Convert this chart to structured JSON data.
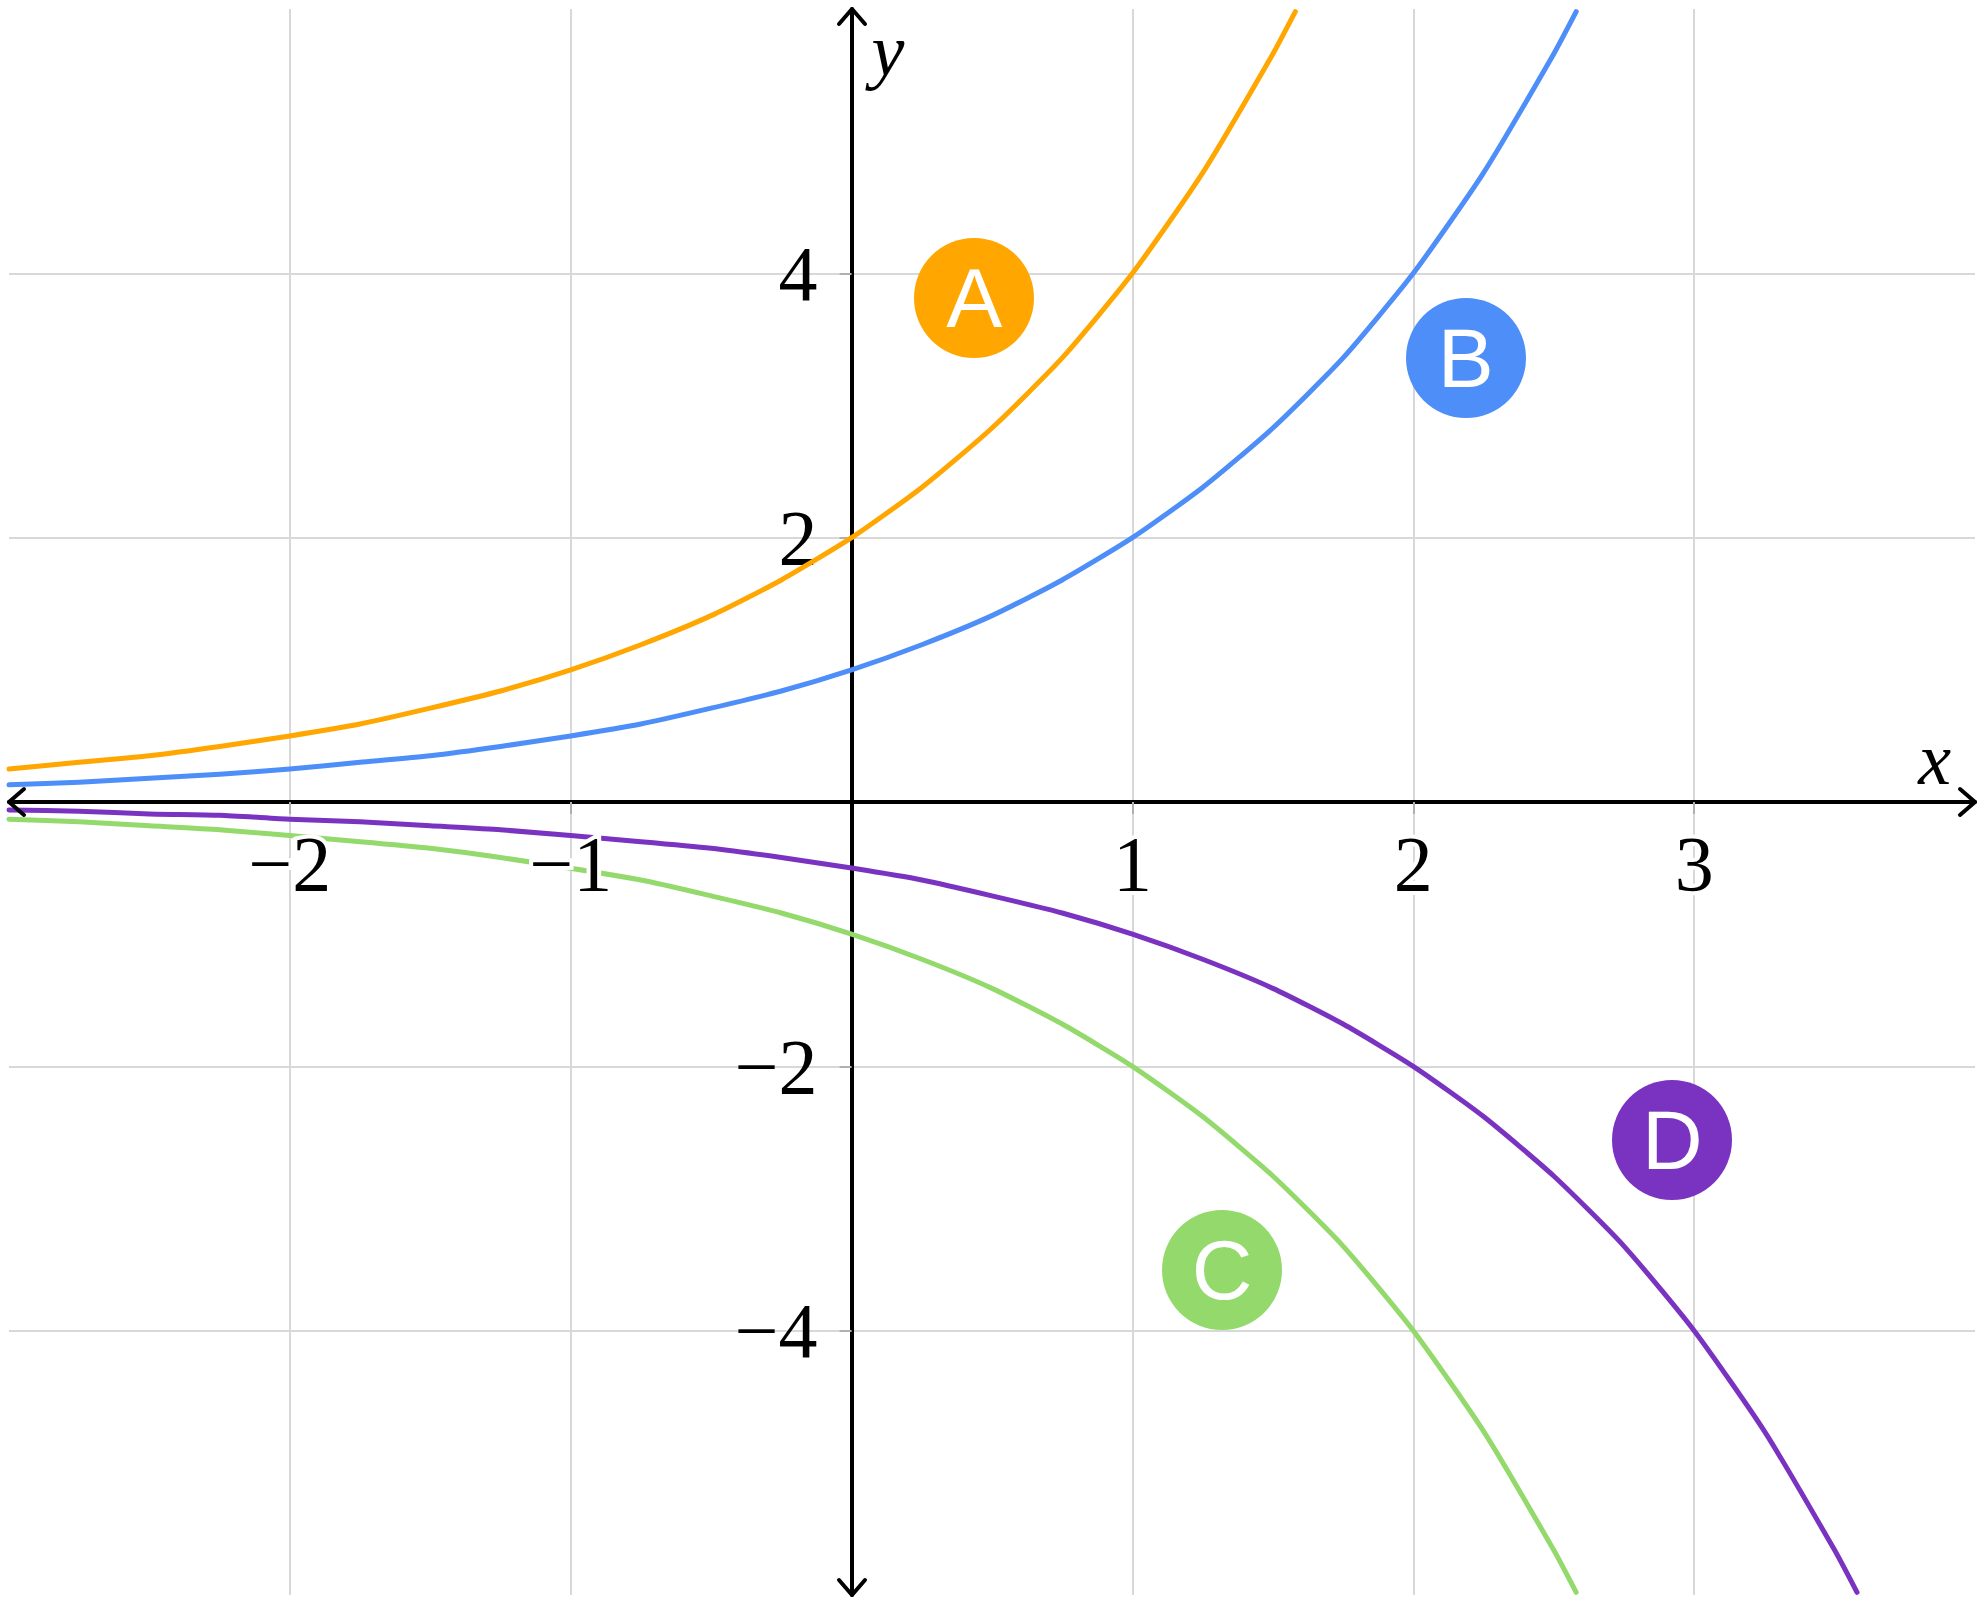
{
  "chart_data": {
    "type": "line",
    "xlabel": "x",
    "ylabel": "y",
    "xlim": [
      -3,
      4
    ],
    "ylim": [
      -6,
      6
    ],
    "xticks": [
      {
        "value": -2,
        "label": "−2"
      },
      {
        "value": -1,
        "label": "−1"
      },
      1,
      2,
      3
    ],
    "yticks": [
      {
        "value": -4,
        "label": "−4"
      },
      {
        "value": -2,
        "label": "−2"
      },
      2,
      4
    ],
    "grid": true,
    "marker": "none",
    "line_style": "solid",
    "series": [
      {
        "name": "A",
        "color": "#ffa600",
        "x": [
          -3,
          -2.75,
          -2.5,
          -2.25,
          -2,
          -1.75,
          -1.5,
          -1.25,
          -1,
          -0.75,
          -0.5,
          -0.25,
          0,
          0.25,
          0.5,
          0.75,
          1,
          1.25,
          1.5,
          1.58
        ],
        "values": [
          0.25,
          0.3,
          0.35,
          0.42,
          0.5,
          0.59,
          0.71,
          0.84,
          1,
          1.19,
          1.41,
          1.68,
          2,
          2.38,
          2.83,
          3.36,
          4,
          4.76,
          5.66,
          5.98
        ]
      },
      {
        "name": "B",
        "color": "#4d8ef8",
        "x": [
          -3,
          -2.75,
          -2.5,
          -2.25,
          -2,
          -1.75,
          -1.5,
          -1.25,
          -1,
          -0.75,
          -0.5,
          -0.25,
          0,
          0.25,
          0.5,
          0.75,
          1,
          1.25,
          1.5,
          1.75,
          2,
          2.25,
          2.5,
          2.58
        ],
        "values": [
          0.13,
          0.15,
          0.18,
          0.21,
          0.25,
          0.3,
          0.35,
          0.42,
          0.5,
          0.59,
          0.71,
          0.84,
          1,
          1.19,
          1.41,
          1.68,
          2,
          2.38,
          2.83,
          3.36,
          4,
          4.76,
          5.66,
          5.98
        ]
      },
      {
        "name": "C",
        "color": "#93d96b",
        "x": [
          -3,
          -2.75,
          -2.5,
          -2.25,
          -1.75,
          -1.5,
          -1.25,
          -0.75,
          -0.5,
          -0.25,
          0,
          0.25,
          0.5,
          0.75,
          1,
          1.25,
          1.5,
          1.75,
          2,
          2.25,
          2.5,
          2.58
        ],
        "values": [
          -0.13,
          -0.15,
          -0.18,
          -0.21,
          -0.3,
          -0.35,
          -0.42,
          -0.59,
          -0.71,
          -0.84,
          -1,
          -1.19,
          -1.41,
          -1.68,
          -2,
          -2.38,
          -2.83,
          -3.36,
          -4,
          -4.76,
          -5.66,
          -5.98
        ]
      },
      {
        "name": "D",
        "color": "#7a33c0",
        "x": [
          -3,
          -2.75,
          -2.5,
          -2.25,
          -2,
          -1.75,
          -1.5,
          -1.25,
          -0.75,
          -0.5,
          -0.25,
          0,
          0.25,
          0.5,
          0.75,
          1,
          1.25,
          1.5,
          1.75,
          2,
          2.25,
          2.5,
          2.75,
          3,
          3.25,
          3.5,
          3.58
        ],
        "values": [
          -0.06,
          -0.07,
          -0.09,
          -0.1,
          -0.13,
          -0.15,
          -0.18,
          -0.21,
          -0.3,
          -0.35,
          -0.42,
          -0.5,
          -0.59,
          -0.71,
          -0.84,
          -1,
          -1.19,
          -1.41,
          -1.68,
          -2,
          -2.38,
          -2.83,
          -3.36,
          -4,
          -4.76,
          -5.66,
          -5.98
        ]
      }
    ]
  }
}
